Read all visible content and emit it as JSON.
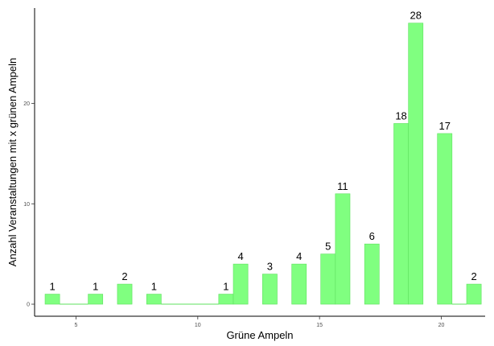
{
  "chart_data": {
    "type": "bar",
    "title": "",
    "xlabel": "Grüne Ampeln",
    "ylabel": "Anzahl Veranstaltungen mit x grünen Ampeln",
    "xlim": [
      3.3,
      21.8
    ],
    "ylim": [
      -1.2,
      29.5
    ],
    "x_ticks": [
      5,
      10,
      15,
      20
    ],
    "y_ticks": [
      0,
      10,
      20
    ],
    "grid": false,
    "bar_color": "#80ff80",
    "bar_edge_color": "#5fe05f",
    "baseline_color": "#5fe05f",
    "bins": [
      {
        "x0": 3.73,
        "x1": 4.33,
        "value": 1,
        "label": "1"
      },
      {
        "x0": 4.33,
        "x1": 5.5,
        "value": 0,
        "label": ""
      },
      {
        "x0": 5.5,
        "x1": 6.1,
        "value": 1,
        "label": "1"
      },
      {
        "x0": 6.7,
        "x1": 7.3,
        "value": 2,
        "label": "2"
      },
      {
        "x0": 7.9,
        "x1": 8.5,
        "value": 1,
        "label": "1"
      },
      {
        "x0": 8.5,
        "x1": 10.86,
        "value": 0,
        "label": ""
      },
      {
        "x0": 10.86,
        "x1": 11.46,
        "value": 1,
        "label": "1"
      },
      {
        "x0": 11.46,
        "x1": 12.06,
        "value": 4,
        "label": "4"
      },
      {
        "x0": 12.66,
        "x1": 13.26,
        "value": 3,
        "label": "3"
      },
      {
        "x0": 13.86,
        "x1": 14.46,
        "value": 4,
        "label": "4"
      },
      {
        "x0": 15.05,
        "x1": 15.65,
        "value": 5,
        "label": "5"
      },
      {
        "x0": 15.65,
        "x1": 16.25,
        "value": 11,
        "label": "11"
      },
      {
        "x0": 16.85,
        "x1": 17.45,
        "value": 6,
        "label": "6"
      },
      {
        "x0": 18.05,
        "x1": 18.65,
        "value": 18,
        "label": "18"
      },
      {
        "x0": 18.65,
        "x1": 19.25,
        "value": 28,
        "label": "28"
      },
      {
        "x0": 19.84,
        "x1": 20.44,
        "value": 17,
        "label": "17"
      },
      {
        "x0": 20.44,
        "x1": 21.04,
        "value": 0,
        "label": ""
      },
      {
        "x0": 21.04,
        "x1": 21.64,
        "value": 2,
        "label": "2"
      }
    ]
  }
}
